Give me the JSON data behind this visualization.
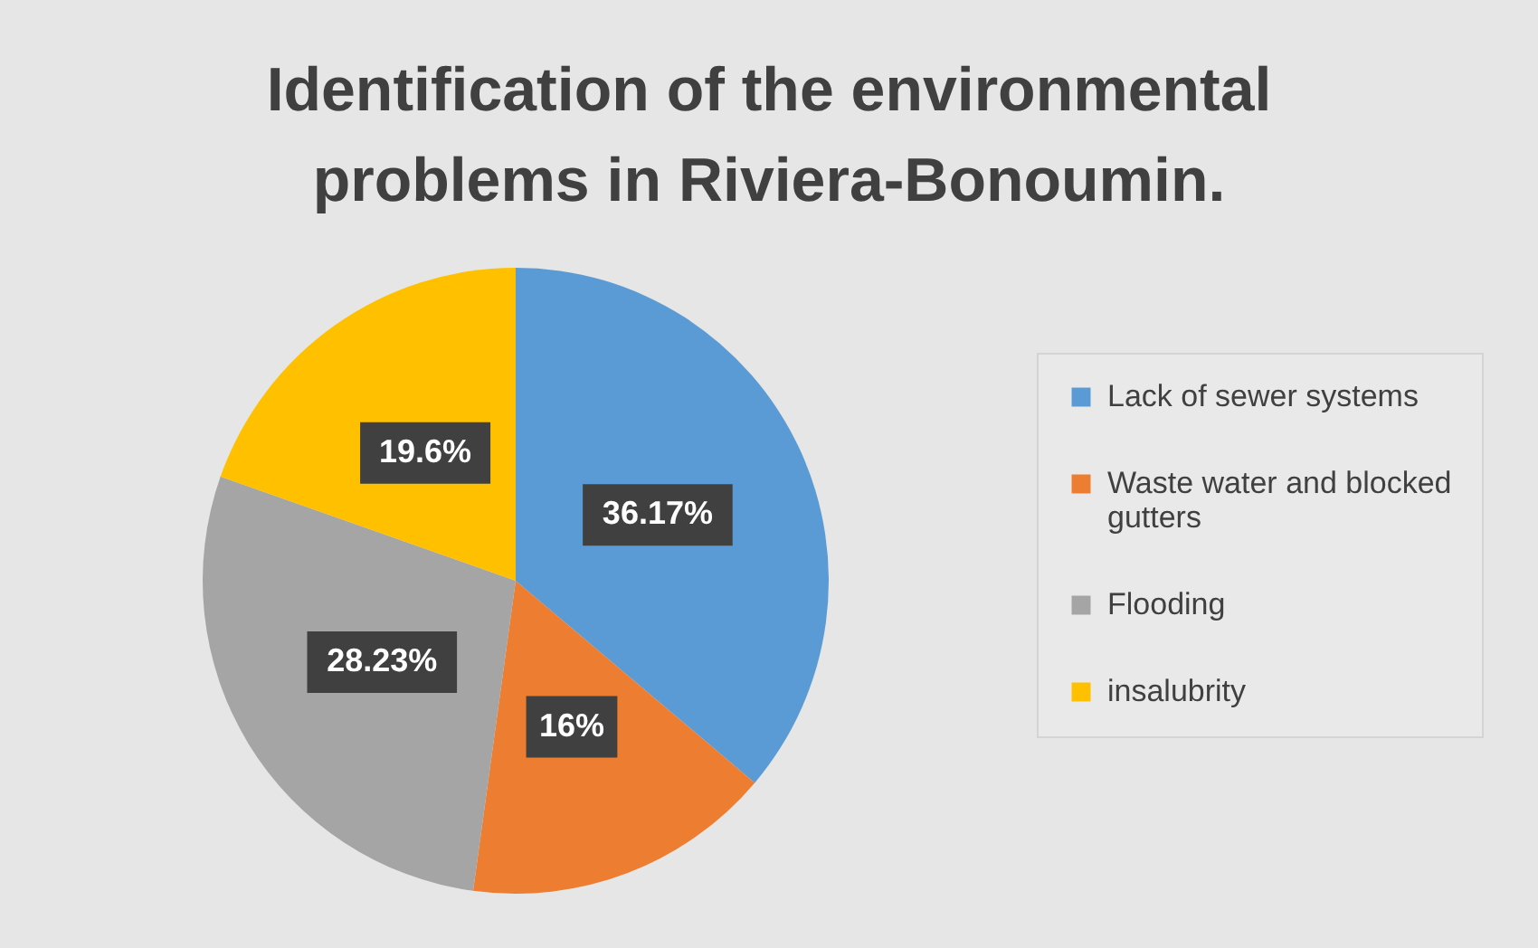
{
  "chart_data": {
    "type": "pie",
    "title": "Identification of the environmental problems in Riviera-Bonoumin.",
    "categories": [
      "Lack of sewer systems",
      "Waste water and blocked gutters",
      "Flooding",
      "insalubrity"
    ],
    "values": [
      36.17,
      16,
      28.23,
      19.6
    ],
    "colors": [
      "#5b9bd5",
      "#ed7d31",
      "#a5a5a5",
      "#ffc000"
    ],
    "value_labels": [
      "36.17%",
      "16%",
      "28.23%",
      "19.6%"
    ],
    "legend": "right"
  }
}
